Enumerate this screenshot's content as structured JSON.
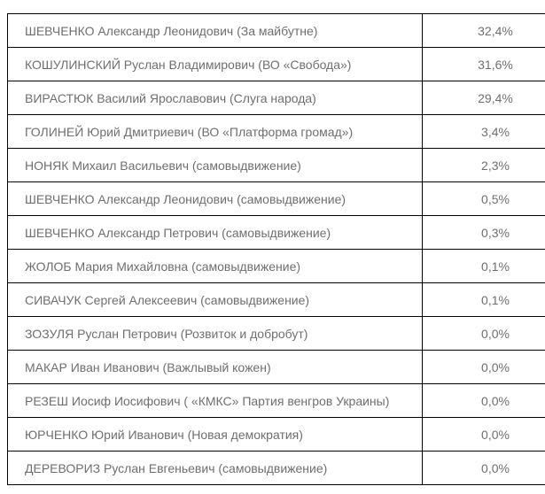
{
  "page": {
    "background_color": "#ffffff",
    "border_color": "#000000",
    "text_color": "#6f6f6f"
  },
  "results_table": {
    "columns": [
      "candidate",
      "percent"
    ],
    "rows": [
      {
        "candidate": "ШЕВЧЕНКО Александр Леонидович (За майбутне)",
        "percent": "32,4%"
      },
      {
        "candidate": "КОШУЛИНСКИЙ Руслан Владимирович (ВО «Свобода»)",
        "percent": "31,6%"
      },
      {
        "candidate": "ВИРАСТЮК Василий Ярославович (Слуга народа)",
        "percent": "29,4%"
      },
      {
        "candidate": "ГОЛИНЕЙ Юрий Дмитриевич (ВО «Платформа громад»)",
        "percent": "3,4%"
      },
      {
        "candidate": "НОНЯК Михаил Васильевич (самовыдвижение)",
        "percent": "2,3%"
      },
      {
        "candidate": "ШЕВЧЕНКО Александр Леонидович (самовыдвижение)",
        "percent": "0,5%"
      },
      {
        "candidate": "ШЕВЧЕНКО Александр Петрович (самовыдвижение)",
        "percent": "0,3%"
      },
      {
        "candidate": "ЖОЛОБ Мария Михайловна (самовыдвижение)",
        "percent": "0,1%"
      },
      {
        "candidate": "СИВАЧУК Сергей Алексеевич (самовыдвижение)",
        "percent": "0,1%"
      },
      {
        "candidate": "ЗОЗУЛЯ Руслан Петрович (Розвиток и добробут)",
        "percent": "0,0%"
      },
      {
        "candidate": "МАКАР Иван Иванович (Важлывый кожен)",
        "percent": "0,0%"
      },
      {
        "candidate": "РЕЗЕШ Иосиф Иосифович ( «КМКС» Партия венгров Украины)",
        "percent": "0,0%"
      },
      {
        "candidate": "ЮРЧЕНКО Юрий Иванович (Новая демократия)",
        "percent": "0,0%"
      },
      {
        "candidate": "ДЕРЕВОРИЗ Руслан Евгеньевич (самовыдвижение)",
        "percent": "0,0%"
      }
    ]
  }
}
